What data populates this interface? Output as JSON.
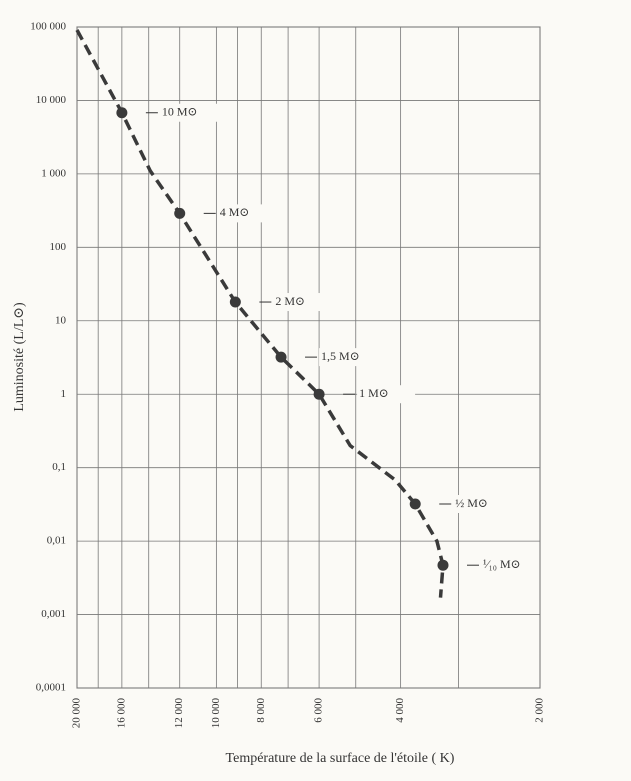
{
  "chart_data": {
    "type": "line",
    "xlabel": "Température de la surface de l'étoile ( K)",
    "ylabel": "Luminosité (L/L⊙)",
    "xscale": "log",
    "yscale": "log",
    "grid": true,
    "xlim": [
      20000,
      2000
    ],
    "xticks": [
      {
        "value": 20000,
        "label": "20 000"
      },
      {
        "value": 16000,
        "label": "16 000"
      },
      {
        "value": 12000,
        "label": "12 000"
      },
      {
        "value": 10000,
        "label": "10 000"
      },
      {
        "value": 8000,
        "label": "8 000"
      },
      {
        "value": 6000,
        "label": "6 000"
      },
      {
        "value": 4000,
        "label": "4 000"
      },
      {
        "value": 2000,
        "label": "2 000"
      }
    ],
    "xminor": [
      18000,
      14000,
      9000,
      7000,
      5000,
      3000
    ],
    "ylim": [
      0.0001,
      100000
    ],
    "yticks": [
      {
        "value": 100000,
        "label": "100 000"
      },
      {
        "value": 10000,
        "label": "10 000"
      },
      {
        "value": 1000,
        "label": "1 000"
      },
      100,
      10,
      1,
      {
        "value": 0.1,
        "label": "0,1"
      },
      {
        "value": 0.01,
        "label": "0,01"
      },
      {
        "value": 0.001,
        "label": "0,001"
      },
      {
        "value": 0.0001,
        "label": "0,0001"
      }
    ],
    "color": "#3a3a3a",
    "curve": {
      "x": [
        20000,
        16000,
        13900,
        12000,
        9100,
        7250,
        6000,
        5140,
        4110,
        3720,
        3340,
        3240,
        3280
      ],
      "values": [
        91000,
        6800,
        1100,
        290,
        18,
        3.2,
        1,
        0.2,
        0.068,
        0.032,
        0.01,
        0.0047,
        0.0017
      ]
    },
    "stars": {
      "x": [
        16000,
        12000,
        9100,
        7250,
        6000,
        3720,
        3240
      ],
      "values": [
        6800,
        290,
        18,
        3.2,
        1,
        0.032,
        0.0047
      ],
      "labels": [
        "10 M⊙",
        "4 M⊙",
        "2 M⊙",
        "1,5 M⊙",
        "1 M⊙",
        "½ M⊙",
        "¹⁄₁₀ M⊙"
      ]
    }
  }
}
